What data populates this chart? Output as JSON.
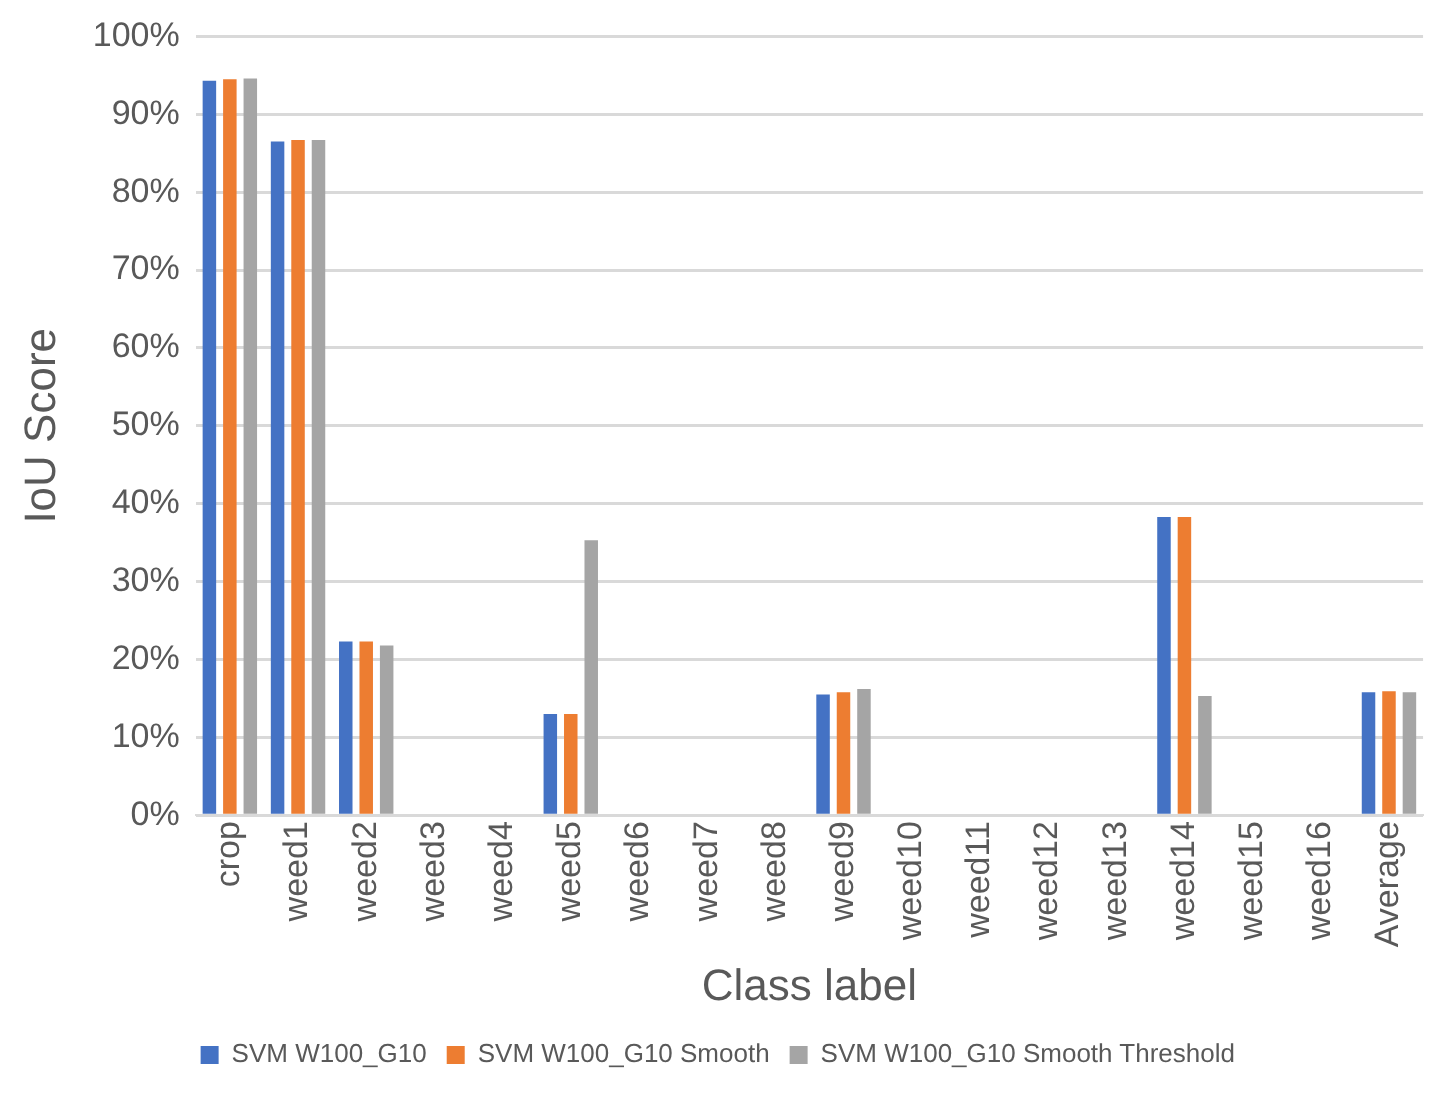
{
  "chart_data": {
    "type": "bar",
    "xlabel": "Class label",
    "ylabel": "IoU Score",
    "categories": [
      "crop",
      "weed1",
      "weed2",
      "weed3",
      "weed4",
      "weed5",
      "weed6",
      "weed7",
      "weed8",
      "weed9",
      "weed10",
      "weed11",
      "weed12",
      "weed13",
      "weed14",
      "weed15",
      "weed16",
      "Average"
    ],
    "series": [
      {
        "name": "SVM W100_G10",
        "color": "#4472c4",
        "values": [
          94.3,
          86.5,
          22.3,
          0,
          0,
          13.0,
          0,
          0,
          0,
          15.5,
          0,
          0,
          0,
          0,
          38.3,
          0,
          0,
          15.8
        ]
      },
      {
        "name": "SVM W100_G10 Smooth",
        "color": "#ed7d31",
        "values": [
          94.5,
          86.7,
          22.3,
          0,
          0,
          13.0,
          0,
          0,
          0,
          15.8,
          0,
          0,
          0,
          0,
          38.3,
          0,
          0,
          15.9
        ]
      },
      {
        "name": "SVM W100_G10 Smooth Threshold",
        "color": "#a5a5a5",
        "values": [
          94.6,
          86.7,
          21.8,
          0,
          0,
          35.3,
          0,
          0,
          0,
          16.2,
          0,
          0,
          0,
          0,
          15.3,
          0,
          0,
          15.8
        ]
      }
    ],
    "ylim": [
      0,
      100
    ],
    "yticks": [
      {
        "value": 0,
        "label": "0%"
      },
      {
        "value": 10,
        "label": "10%"
      },
      {
        "value": 20,
        "label": "20%"
      },
      {
        "value": 30,
        "label": "30%"
      },
      {
        "value": 40,
        "label": "40%"
      },
      {
        "value": 50,
        "label": "50%"
      },
      {
        "value": 60,
        "label": "60%"
      },
      {
        "value": 70,
        "label": "70%"
      },
      {
        "value": 80,
        "label": "80%"
      },
      {
        "value": 90,
        "label": "90%"
      },
      {
        "value": 100,
        "label": "100%"
      }
    ],
    "grid": "y",
    "legend": "bottom"
  }
}
